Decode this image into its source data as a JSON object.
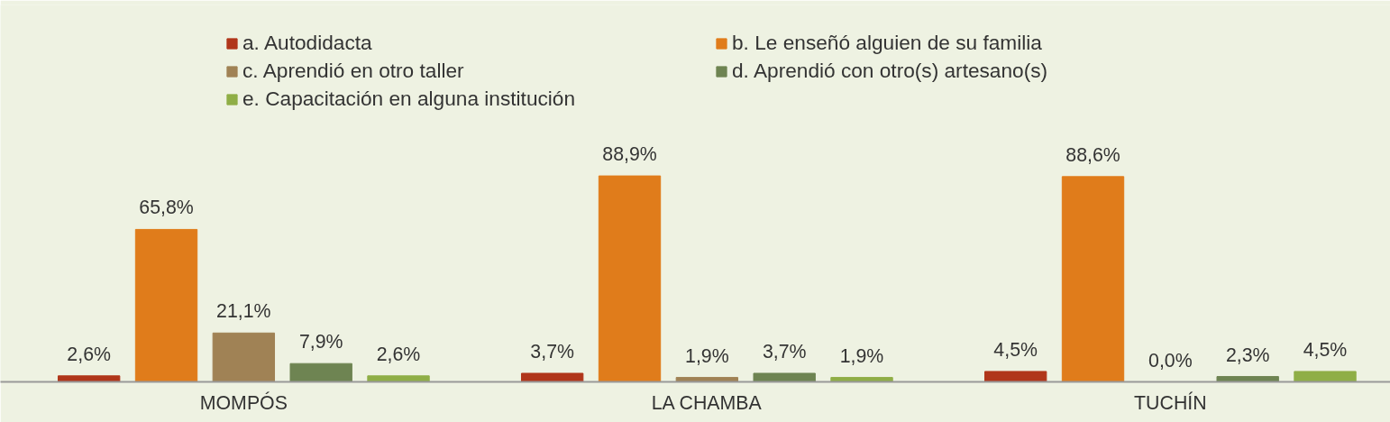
{
  "chart_data": {
    "type": "bar",
    "categories": [
      "MOMPÓS",
      "LA CHAMBA",
      "TUCHÍN"
    ],
    "series": [
      {
        "name": "a. Autodidacta",
        "color": "#b0361a",
        "values": [
          2.6,
          3.7,
          4.5
        ],
        "value_labels": [
          "2,6%",
          "3,7%",
          "4,5%"
        ]
      },
      {
        "name": "b. Le enseñó alguien de su familia",
        "color": "#e07c1b",
        "values": [
          65.8,
          88.9,
          88.6
        ],
        "value_labels": [
          "65,8%",
          "88,9%",
          "88,6%"
        ]
      },
      {
        "name": "c. Aprendió en otro taller",
        "color": "#a08255",
        "values": [
          21.1,
          1.9,
          0.0
        ],
        "value_labels": [
          "21,1%",
          "1,9%",
          "0,0%"
        ]
      },
      {
        "name": "d. Aprendió con otro(s) artesano(s)",
        "color": "#6e8452",
        "values": [
          7.9,
          3.7,
          2.3
        ],
        "value_labels": [
          "7,9%",
          "3,7%",
          "2,3%"
        ]
      },
      {
        "name": "e. Capacitación en alguna institución",
        "color": "#8fae46",
        "values": [
          2.6,
          1.9,
          4.5
        ],
        "value_labels": [
          "2,6%",
          "1,9%",
          "4,5%"
        ]
      }
    ],
    "legend": "top"
  }
}
